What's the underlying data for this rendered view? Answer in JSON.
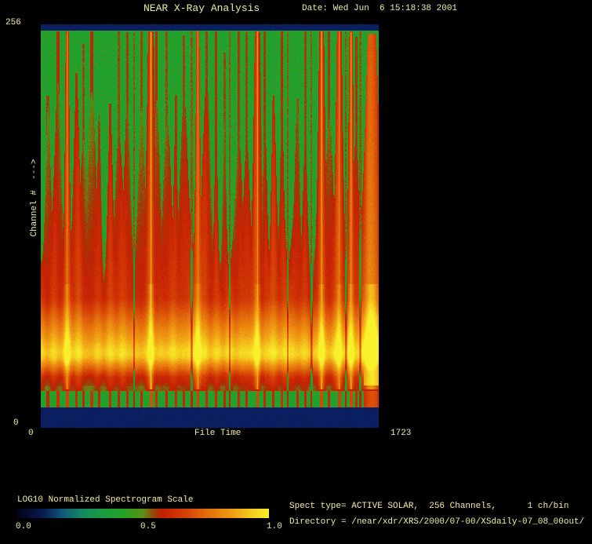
{
  "text_color": "#F0EDA0",
  "background": "#000000",
  "header": {
    "title": "NEAR X-Ray Analysis",
    "date": "Date: Wed Jun  6 15:18:38 2001"
  },
  "axes": {
    "y_max_label": "256",
    "y_min_label": "0",
    "y_label": "Channel #  --->",
    "x_min_label": "0",
    "x_label": "File Time",
    "x_max_label": "1723"
  },
  "colorbar": {
    "title": "LOG10 Normalized Spectrogram Scale",
    "tick_labels": [
      "0.0",
      "0.5",
      "1.0"
    ]
  },
  "footer": {
    "spect_line": "Spect type= ACTIVE SOLAR,  256 Channels,      1 ch/bin",
    "directory_line": "Directory = /near/xdr/XRS/2000/07-00/XSdaily-07_08_00out/"
  },
  "chart_data": {
    "type": "heatmap",
    "subtype": "spectrogram",
    "title": "NEAR X-Ray Analysis",
    "xlabel": "File Time",
    "ylabel": "Channel # --->",
    "xlim": [
      0,
      1723
    ],
    "ylim": [
      0,
      256
    ],
    "colorbar": {
      "label": "LOG10 Normalized Spectrogram Scale",
      "range": [
        0.0,
        1.0
      ],
      "ticks": [
        0.0,
        0.5,
        1.0
      ],
      "position": "bottom-left"
    },
    "palette_stops": [
      [
        0.0,
        "#02051A"
      ],
      [
        0.1,
        "#0A1A50"
      ],
      [
        0.18,
        "#11597A"
      ],
      [
        0.26,
        "#158A60"
      ],
      [
        0.34,
        "#1C9C3E"
      ],
      [
        0.42,
        "#23A326"
      ],
      [
        0.5,
        "#5E8F16"
      ],
      [
        0.55,
        "#A03A06"
      ],
      [
        0.58,
        "#C42004"
      ],
      [
        0.66,
        "#D43E06"
      ],
      [
        0.76,
        "#E4700C"
      ],
      [
        0.86,
        "#F0A014"
      ],
      [
        0.93,
        "#F4CC1E"
      ],
      [
        1.0,
        "#F9F02C"
      ]
    ],
    "background_value": 0.4,
    "blank_band_color": "#0B1F61",
    "bands": [
      {
        "channels": [
          252,
          256
        ],
        "value": 0.08,
        "note": "blank top band (no data)"
      },
      {
        "channels": [
          110,
          252
        ],
        "value": 0.4,
        "note": "quiet green background crossed by vertical event streaks"
      },
      {
        "channels": [
          24,
          110
        ],
        "value_peak": 0.95,
        "peak_channels": [
          34,
          50
        ],
        "note": "intense solar X-ray emission band, red to bright yellow"
      },
      {
        "channels": [
          13,
          24
        ],
        "value": 0.4,
        "note": "quiet green band"
      },
      {
        "channels": [
          0,
          13
        ],
        "value": 0.08,
        "note": "blank bottom band (no data)"
      }
    ],
    "streaks": [
      {
        "x": 34,
        "kind": "red",
        "strength": 0.35
      },
      {
        "x": 86,
        "kind": "red",
        "strength": 0.5
      },
      {
        "x": 133,
        "kind": "bright",
        "strength": 0.7
      },
      {
        "x": 181,
        "kind": "red",
        "strength": 0.45
      },
      {
        "x": 215,
        "kind": "red",
        "strength": 0.3
      },
      {
        "x": 258,
        "kind": "red",
        "strength": 0.55
      },
      {
        "x": 296,
        "kind": "red",
        "strength": 0.35
      },
      {
        "x": 353,
        "kind": "red",
        "strength": 0.45
      },
      {
        "x": 396,
        "kind": "red",
        "strength": 0.3
      },
      {
        "x": 439,
        "kind": "red",
        "strength": 0.4
      },
      {
        "x": 474,
        "kind": "gap",
        "strength": 0.5
      },
      {
        "x": 513,
        "kind": "red",
        "strength": 0.35
      },
      {
        "x": 560,
        "kind": "bright",
        "strength": 0.95
      },
      {
        "x": 589,
        "kind": "red",
        "strength": 0.5
      },
      {
        "x": 641,
        "kind": "red",
        "strength": 0.3
      },
      {
        "x": 686,
        "kind": "red",
        "strength": 0.4
      },
      {
        "x": 727,
        "kind": "red",
        "strength": 0.35
      },
      {
        "x": 767,
        "kind": "gap",
        "strength": 0.55
      },
      {
        "x": 799,
        "kind": "bright",
        "strength": 0.7
      },
      {
        "x": 844,
        "kind": "red",
        "strength": 0.4
      },
      {
        "x": 892,
        "kind": "red",
        "strength": 0.45
      },
      {
        "x": 934,
        "kind": "red",
        "strength": 0.3
      },
      {
        "x": 961,
        "kind": "gap",
        "strength": 0.5
      },
      {
        "x": 1008,
        "kind": "red",
        "strength": 0.4
      },
      {
        "x": 1048,
        "kind": "red",
        "strength": 0.35
      },
      {
        "x": 1103,
        "kind": "bright",
        "strength": 0.8
      },
      {
        "x": 1141,
        "kind": "red",
        "strength": 0.4
      },
      {
        "x": 1185,
        "kind": "red",
        "strength": 0.35
      },
      {
        "x": 1227,
        "kind": "red",
        "strength": 0.5
      },
      {
        "x": 1258,
        "kind": "gap",
        "strength": 0.45
      },
      {
        "x": 1306,
        "kind": "red",
        "strength": 0.4
      },
      {
        "x": 1347,
        "kind": "red",
        "strength": 0.35
      },
      {
        "x": 1378,
        "kind": "gap",
        "strength": 0.5
      },
      {
        "x": 1430,
        "kind": "bright",
        "strength": 0.85
      },
      {
        "x": 1468,
        "kind": "red",
        "strength": 0.4
      },
      {
        "x": 1520,
        "kind": "bright",
        "strength": 0.7
      },
      {
        "x": 1554,
        "kind": "gap",
        "strength": 0.5
      },
      {
        "x": 1580,
        "kind": "bright",
        "strength": 0.8
      },
      {
        "x": 1606,
        "kind": "red",
        "strength": 0.45
      },
      {
        "x": 1627,
        "kind": "gap",
        "strength": 0.55
      },
      {
        "x": 1687,
        "kind": "wide",
        "strength": 1.0
      }
    ]
  }
}
